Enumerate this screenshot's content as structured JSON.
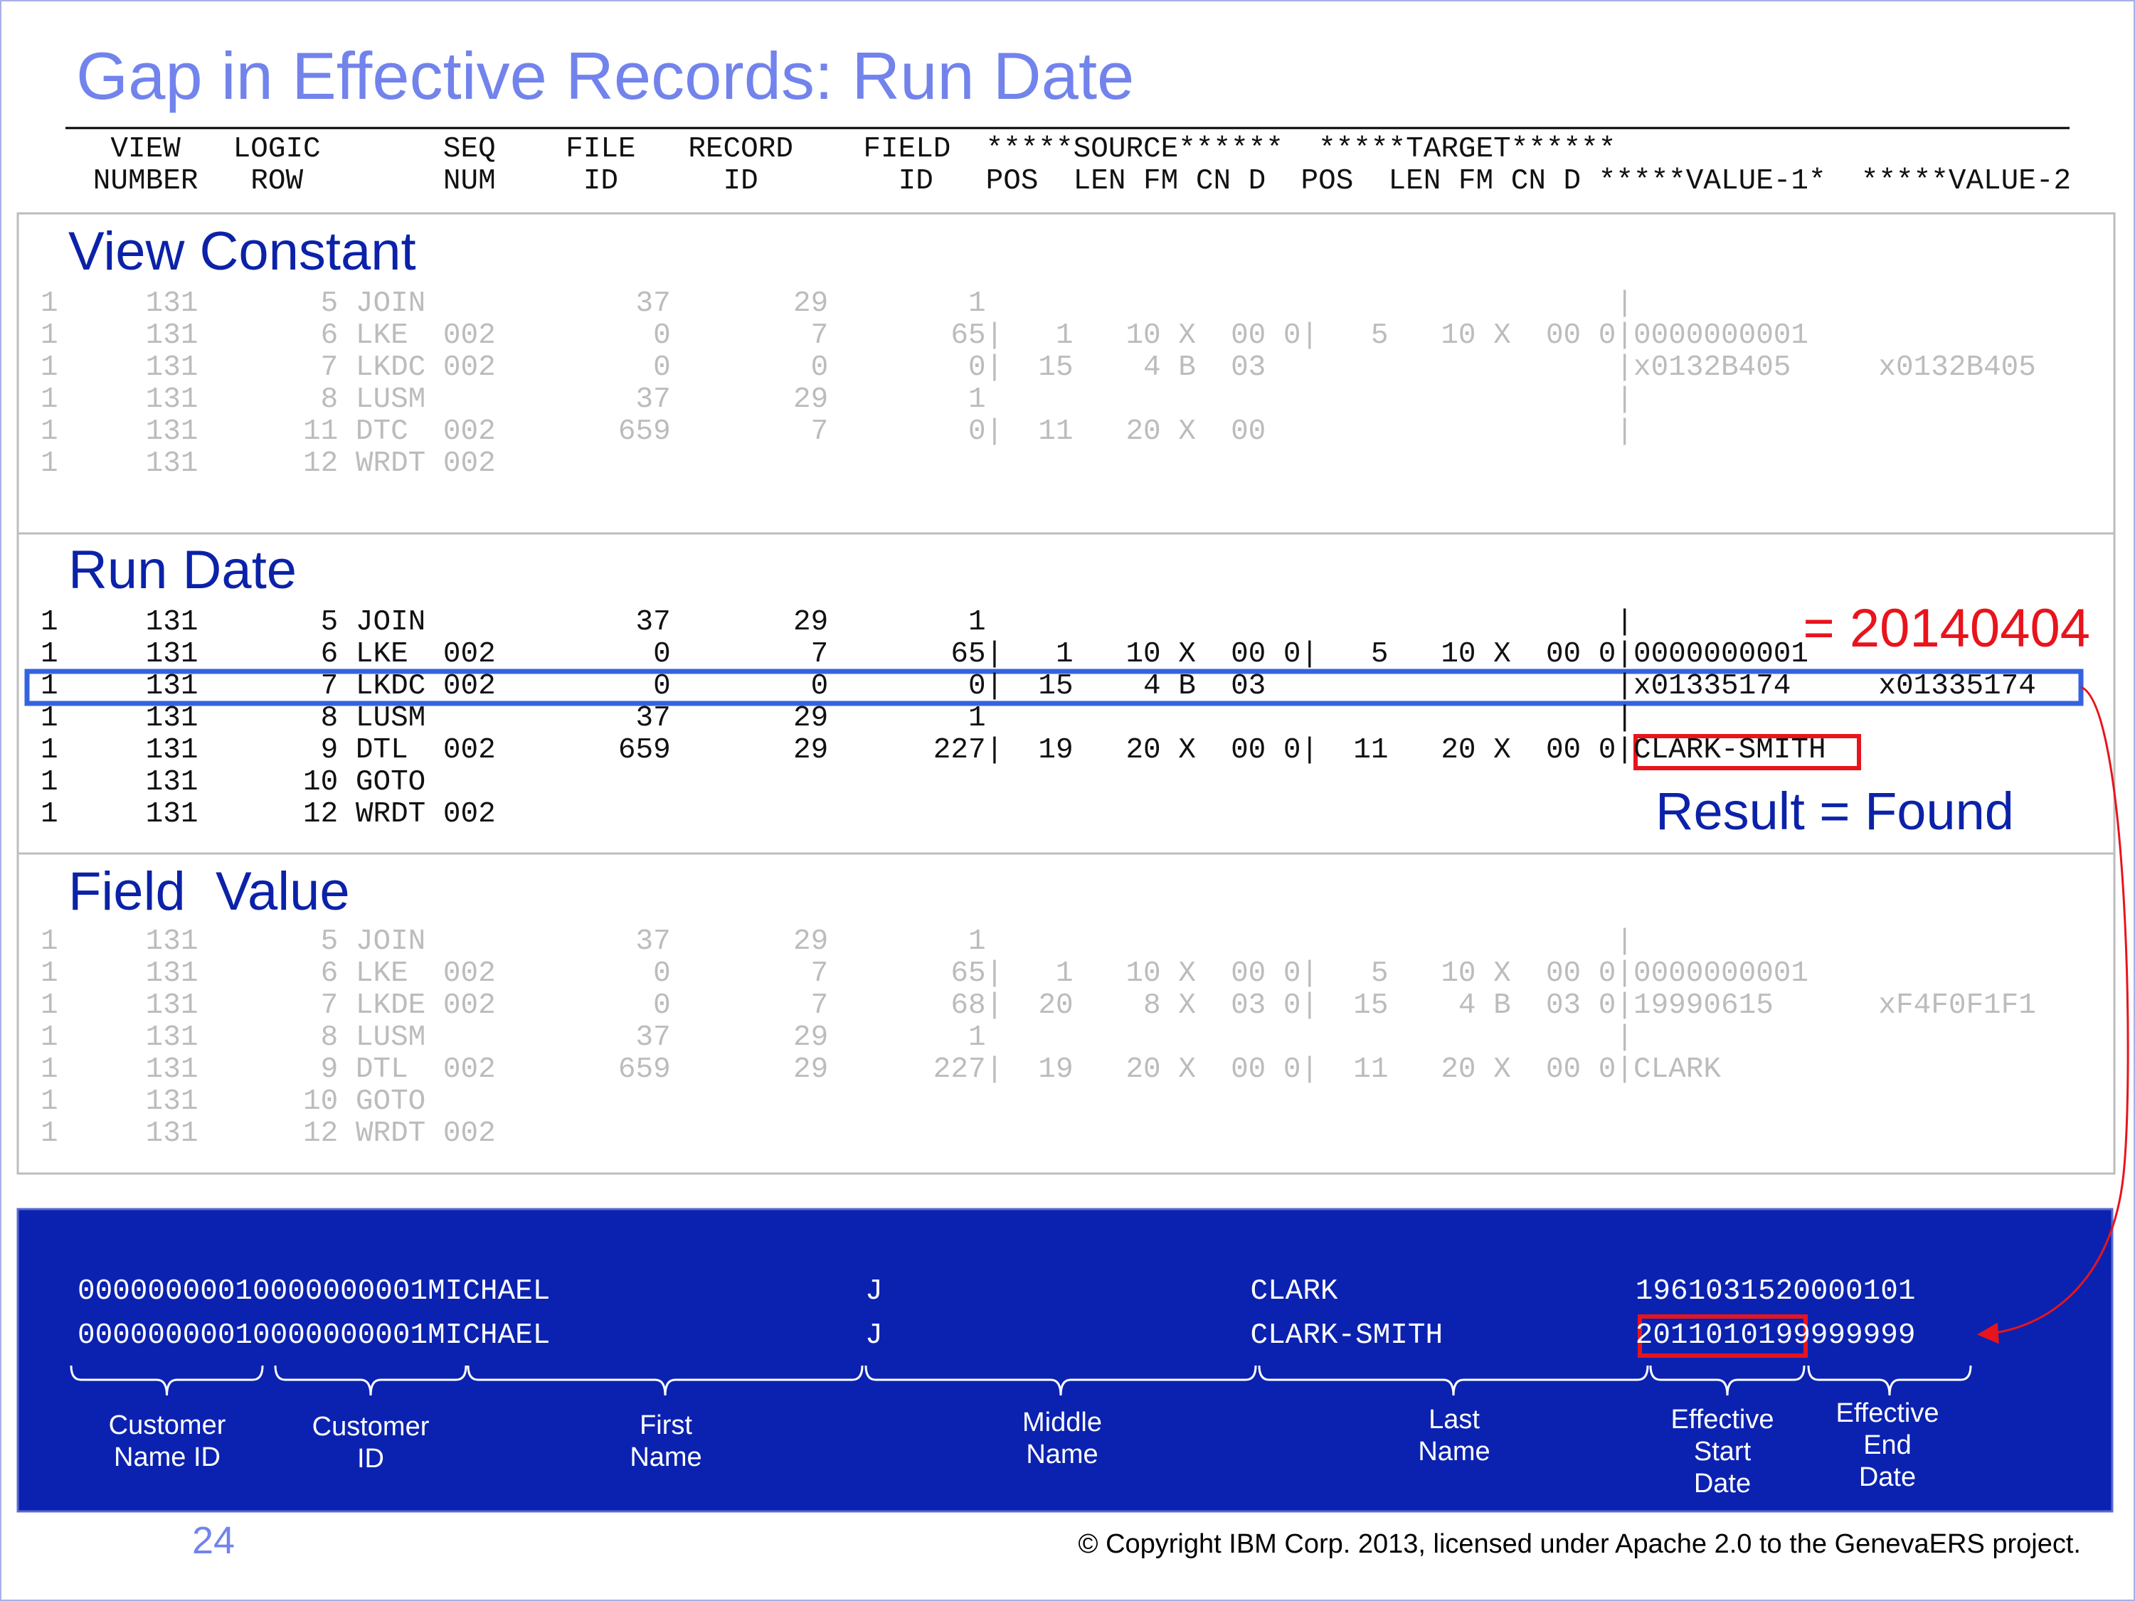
{
  "title": "Gap in Effective Records: Run Date",
  "header": [
    "    VIEW   LOGIC       SEQ    FILE   RECORD    FIELD  *****SOURCE******  *****TARGET******",
    "   NUMBER   ROW        NUM     ID      ID        ID   POS  LEN FM CN D  POS  LEN FM CN D *****VALUE-1*  *****VALUE-2"
  ],
  "sections": [
    {
      "title": "View Constant",
      "rows": [
        "1     131       5 JOIN            37       29        1                                    |",
        "1     131       6 LKE  002         0        7       65|   1   10 X  00 0|   5   10 X  00 0|0000000001",
        "1     131       7 LKDC 002         0        0        0|  15    4 B  03                    |x0132B405     x0132B405",
        "1     131       8 LUSM            37       29        1                                    |",
        "1     131      11 DTC  002       659        7        0|  11   20 X  00                    |",
        "1     131      12 WRDT 002"
      ]
    },
    {
      "title": "Run Date",
      "rows": [
        "1     131       5 JOIN            37       29        1                                    |",
        "1     131       6 LKE  002         0        7       65|   1   10 X  00 0|   5   10 X  00 0|0000000001",
        "1     131       7 LKDC 002         0        0        0|  15    4 B  03                    |x01335174     x01335174",
        "1     131       8 LUSM            37       29        1                                    |",
        "1     131       9 DTL  002       659       29      227|  19   20 X  00 0|  11   20 X  00 0|CLARK-SMITH",
        "1     131      10 GOTO",
        "1     131      12 WRDT 002"
      ]
    },
    {
      "title": "Field  Value",
      "rows": [
        "1     131       5 JOIN            37       29        1                                    |",
        "1     131       6 LKE  002         0        7       65|   1   10 X  00 0|   5   10 X  00 0|0000000001",
        "1     131       7 LKDE 002         0        7       68|  20    8 X  03 0|  15    4 B  03 0|19990615      xF4F0F1F1",
        "1     131       8 LUSM            37       29        1                                    |",
        "1     131       9 DTL  002       659       29      227|  19   20 X  00 0|  11   20 X  00 0|CLARK",
        "1     131      10 GOTO",
        "1     131      12 WRDT 002"
      ]
    }
  ],
  "annotations": {
    "run_date_value": "= 20140404",
    "result": "Result = Found"
  },
  "records": [
    "00000000010000000001MICHAEL                  J                     CLARK                 1961031520000101",
    "00000000010000000001MICHAEL                  J                     CLARK-SMITH           2011010199999999"
  ],
  "field_labels": [
    [
      "Customer",
      "Name ID"
    ],
    [
      "Customer",
      "ID"
    ],
    [
      "First",
      "Name"
    ],
    [
      "Middle",
      "Name"
    ],
    [
      "Last",
      "Name"
    ],
    [
      "Effective",
      "Start",
      "Date"
    ],
    [
      "Effective",
      "End",
      "Date"
    ]
  ],
  "page_number": "24",
  "copyright": "© Copyright IBM Corp. 2013, licensed under Apache 2.0 to the GenevaERS project."
}
